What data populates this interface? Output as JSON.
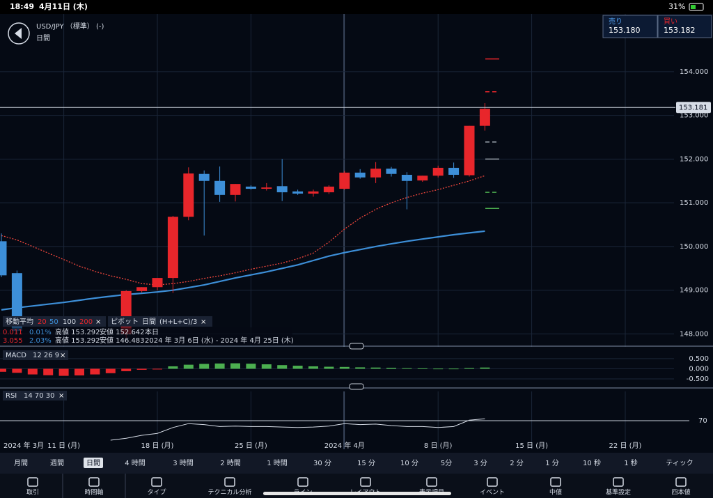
{
  "status_bar": {
    "time": "18:49",
    "date": "4月11日 (木)",
    "battery": "31%"
  },
  "header": {
    "symbol": "USD/JPY （標準） (-)",
    "period": "日間"
  },
  "quote": {
    "sell_label": "売り",
    "sell": "153.180",
    "buy_label": "買い",
    "buy": "153.182"
  },
  "chart_data": {
    "type": "candlestick",
    "categories": [
      "2024 年 3月",
      null,
      null,
      null,
      "11 日 (月)",
      null,
      null,
      null,
      null,
      null,
      "18 日 (月)",
      null,
      null,
      null,
      null,
      null,
      "25 日 (月)",
      null,
      null,
      null,
      null,
      null,
      "2024 年 4月",
      null,
      null,
      null,
      null,
      null,
      "8 日 (月)",
      null,
      null,
      null,
      null,
      null,
      "15 日 (月)",
      null,
      null,
      null,
      null,
      null,
      "22 日 (月)",
      null,
      null,
      null,
      null,
      null
    ],
    "open": [
      150.12,
      149.39,
      null,
      null,
      null,
      null,
      null,
      null,
      147.99,
      148.98,
      149.07,
      149.28,
      150.68,
      151.66,
      151.5,
      151.18,
      151.37,
      151.32,
      151.38,
      151.26,
      151.21,
      151.24,
      151.32,
      151.69,
      151.58,
      151.78,
      151.64,
      151.51,
      151.62,
      151.8,
      151.63,
      152.76,
      null,
      null,
      null,
      null,
      null,
      null,
      null,
      null,
      null,
      null,
      null,
      null,
      null,
      null
    ],
    "high": [
      150.3,
      149.45,
      null,
      null,
      null,
      null,
      null,
      null,
      149.0,
      149.07,
      149.28,
      150.7,
      151.81,
      151.74,
      151.83,
      151.43,
      151.4,
      151.45,
      152.0,
      151.3,
      151.3,
      151.4,
      151.73,
      151.77,
      151.93,
      151.82,
      151.7,
      151.62,
      151.85,
      151.92,
      152.76,
      153.28,
      null,
      null,
      null,
      null,
      null,
      null,
      null,
      null,
      null,
      null,
      null,
      null,
      null,
      null
    ],
    "low": [
      149.3,
      148.0,
      null,
      null,
      null,
      null,
      null,
      null,
      147.9,
      148.95,
      149.0,
      148.94,
      150.6,
      150.25,
      151.02,
      151.03,
      151.3,
      151.28,
      151.04,
      151.18,
      151.14,
      151.2,
      151.3,
      151.55,
      151.45,
      151.6,
      150.85,
      151.48,
      151.58,
      151.57,
      151.6,
      152.65,
      null,
      null,
      null,
      null,
      null,
      null,
      null,
      null,
      null,
      null,
      null,
      null,
      null,
      null
    ],
    "close": [
      149.34,
      148.07,
      null,
      null,
      null,
      null,
      null,
      null,
      148.98,
      149.07,
      149.28,
      150.68,
      151.67,
      151.5,
      151.18,
      151.43,
      151.32,
      151.35,
      151.24,
      151.21,
      151.26,
      151.37,
      151.69,
      151.58,
      151.78,
      151.66,
      151.5,
      151.62,
      151.8,
      151.64,
      152.76,
      153.15,
      null,
      null,
      null,
      null,
      null,
      null,
      null,
      null,
      null,
      null,
      null,
      null,
      null,
      null
    ],
    "up_color": "#e8262b",
    "down_color": "#3d8fd8",
    "moving_averages": [
      {
        "color": "#f0463c",
        "style": "dotted",
        "values": [
          150.25,
          150.15,
          150.0,
          149.85,
          149.7,
          149.55,
          149.43,
          149.33,
          149.25,
          149.15,
          149.12,
          149.15,
          149.2,
          149.27,
          149.33,
          149.4,
          149.48,
          149.55,
          149.62,
          149.72,
          149.85,
          150.1,
          150.4,
          150.65,
          150.85,
          151.0,
          151.12,
          151.22,
          151.3,
          151.4,
          151.5,
          151.62,
          null,
          null,
          null,
          null,
          null,
          null,
          null,
          null,
          null,
          null,
          null,
          null,
          null,
          null
        ]
      },
      {
        "color": "#3d8fd8",
        "style": "solid",
        "values": [
          148.55,
          148.6,
          148.64,
          148.68,
          148.72,
          148.77,
          148.82,
          148.86,
          148.9,
          148.93,
          148.96,
          149.0,
          149.06,
          149.12,
          149.2,
          149.28,
          149.35,
          149.42,
          149.5,
          149.58,
          149.68,
          149.78,
          149.86,
          149.93,
          150.0,
          150.06,
          150.12,
          150.17,
          150.22,
          150.27,
          150.31,
          150.35,
          null,
          null,
          null,
          null,
          null,
          null,
          null,
          null,
          null,
          null,
          null,
          null,
          null,
          null
        ]
      }
    ],
    "pivot_levels": [
      {
        "value": 154.29,
        "color": "#e8262b"
      },
      {
        "value": 153.54,
        "color": "#e8262b"
      },
      {
        "value": 152.39,
        "color": "#9aa3ad"
      },
      {
        "value": 152.0,
        "color": "#9aa3ad"
      },
      {
        "value": 151.24,
        "color": "#4caf50"
      },
      {
        "value": 150.87,
        "color": "#4caf50"
      }
    ],
    "current_price": 153.181,
    "ylim": [
      147.72,
      155.32
    ],
    "yticks": [
      {
        "value": 154,
        "label": "154.000"
      },
      {
        "value": 153,
        "label": "153.000"
      },
      {
        "value": 152,
        "label": "152.000"
      },
      {
        "value": 151,
        "label": "151.000"
      },
      {
        "value": 150,
        "label": "150.000"
      },
      {
        "value": 149,
        "label": "149.000"
      },
      {
        "value": 148,
        "label": "148.000"
      }
    ],
    "macd": {
      "histogram": [
        -0.15,
        -0.2,
        -0.28,
        -0.32,
        -0.35,
        -0.33,
        -0.28,
        -0.22,
        -0.12,
        -0.05,
        -0.01,
        0.12,
        0.2,
        0.24,
        0.26,
        0.27,
        0.25,
        0.22,
        0.18,
        0.15,
        0.12,
        0.1,
        0.09,
        0.07,
        0.06,
        0.05,
        0.03,
        0.02,
        0.01,
        0.01,
        0.04,
        0.06,
        null,
        null,
        null,
        null,
        null,
        null,
        null,
        null,
        null,
        null,
        null,
        null,
        null,
        null
      ],
      "positive_color": "#4caf50",
      "negative_color": "#e8262b",
      "ylim": [
        -0.88,
        0.91
      ],
      "yticks": [
        {
          "value": 0.5,
          "label": "0.500"
        },
        {
          "value": 0,
          "label": "0.000"
        },
        {
          "value": -0.5,
          "label": "-0.500"
        }
      ]
    },
    "rsi": {
      "values": [
        null,
        null,
        null,
        null,
        null,
        null,
        null,
        50,
        52,
        55,
        57,
        63,
        67,
        66,
        64,
        64.5,
        64,
        64,
        63.5,
        63,
        63.5,
        64.5,
        67,
        66,
        66.5,
        65,
        64,
        64,
        63,
        64,
        70.5,
        72,
        null,
        null,
        null,
        null,
        null,
        null,
        null,
        null,
        null,
        null,
        null,
        null,
        null,
        null
      ],
      "color": "#d6dce6",
      "over_color": "#e8262b",
      "ylim": [
        40.7,
        100
      ],
      "yticks": [
        70
      ]
    }
  },
  "indicators": {
    "ma": {
      "label": "移動平均",
      "periods": [
        "20",
        "50",
        "100",
        "200"
      ],
      "close": "×"
    },
    "pivot": {
      "label": "ピボット",
      "period": "日間",
      "formula": "(H+L+C)/3",
      "close": "×"
    },
    "stats": [
      {
        "change": "0.011",
        "percent": "0.01%",
        "high": "高値 153.292",
        "low": "安値 152.642",
        "range": "本日"
      },
      {
        "change": "3.055",
        "percent": "2.03%",
        "high": "高値 153.292",
        "low": "安値 146.483",
        "range": "2024 年 3月 6日 (水) - 2024 年 4月 25日 (木)"
      }
    ],
    "macd": {
      "label": "MACD",
      "params": "12 26 9",
      "close": "×"
    },
    "rsi": {
      "label": "RSI",
      "params": "14 70 30",
      "close": "×"
    }
  },
  "timeframes": {
    "items": [
      "月間",
      "週間",
      "日間",
      "4 時間",
      "3 時間",
      "2 時間",
      "1 時間",
      "30 分",
      "15 分",
      "10 分",
      "5分",
      "3 分",
      "2 分",
      "1 分",
      "10 秒",
      "1 秒",
      "ティック"
    ],
    "selected": 2
  },
  "toolbar": [
    "取引",
    "時間軸",
    "タイプ",
    "テクニカル分析",
    "ライン",
    "レイアウト",
    "表示項目",
    "イベント",
    "中値",
    "基準設定",
    "四本値"
  ]
}
